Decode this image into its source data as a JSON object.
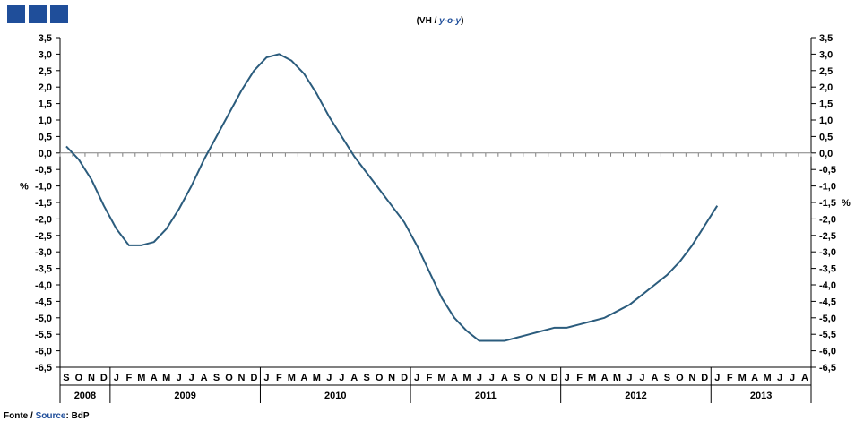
{
  "header": {
    "squares": 3,
    "accent": "#1f4e9a"
  },
  "title": {
    "prefix": "(VH / ",
    "italic": "y-o-y",
    "suffix": ")"
  },
  "footer": {
    "fonte": "Fonte / ",
    "source": "Source",
    "colon_value": ": BdP"
  },
  "colors": {
    "line": "#2b5c7d",
    "axis": "#000000",
    "zero_line": "#808080",
    "source_word": "#1f4e9a"
  },
  "chart_data": {
    "type": "line",
    "title": "(VH / y-o-y)",
    "ylabel_left": "%",
    "ylabel_right": "%",
    "ylim": [
      -6.5,
      3.5
    ],
    "ytick_step": 0.5,
    "grid": false,
    "zero_line": true,
    "month_labels": [
      "S",
      "O",
      "N",
      "D",
      "J",
      "F",
      "M",
      "A",
      "M",
      "J",
      "J",
      "A",
      "S",
      "O",
      "N",
      "D",
      "J",
      "F",
      "M",
      "A",
      "M",
      "J",
      "J",
      "A",
      "S",
      "O",
      "N",
      "D",
      "J",
      "F",
      "M",
      "A",
      "M",
      "J",
      "J",
      "A",
      "S",
      "O",
      "N",
      "D",
      "J",
      "F",
      "M",
      "A",
      "M",
      "J",
      "J",
      "A",
      "S",
      "O",
      "N",
      "D",
      "J",
      "F",
      "M",
      "A",
      "M",
      "J",
      "J",
      "A"
    ],
    "years": [
      {
        "label": "2008",
        "months": 4
      },
      {
        "label": "2009",
        "months": 12
      },
      {
        "label": "2010",
        "months": 12
      },
      {
        "label": "2011",
        "months": 12
      },
      {
        "label": "2012",
        "months": 12
      },
      {
        "label": "2013",
        "months": 8
      }
    ],
    "series": [
      {
        "values": [
          0.2,
          -0.2,
          -0.8,
          -1.6,
          -2.3,
          -2.8,
          -2.8,
          -2.7,
          -2.3,
          -1.7,
          -1.0,
          -0.2,
          0.5,
          1.2,
          1.9,
          2.5,
          2.9,
          3.0,
          2.8,
          2.4,
          1.8,
          1.1,
          0.5,
          -0.1,
          -0.6,
          -1.1,
          -1.6,
          -2.1,
          -2.8,
          -3.6,
          -4.4,
          -5.0,
          -5.4,
          -5.7,
          -5.7,
          -5.7,
          -5.6,
          -5.5,
          -5.4,
          -5.3,
          -5.3,
          -5.2,
          -5.1,
          -5.0,
          -4.8,
          -4.6,
          -4.3,
          -4.0,
          -3.7,
          -3.3,
          -2.8,
          -2.2,
          -1.6
        ]
      }
    ]
  }
}
